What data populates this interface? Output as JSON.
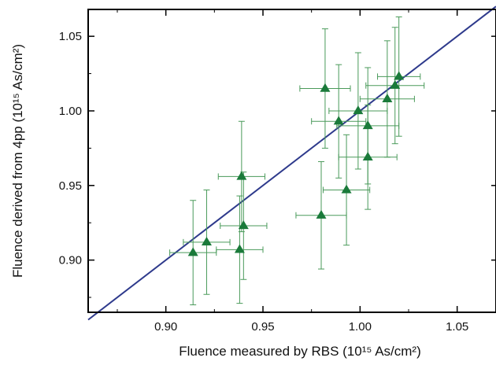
{
  "chart_data": {
    "type": "scatter",
    "title": "",
    "xlabel": "Fluence measured by RBS (10¹⁵ As/cm²)",
    "ylabel": "Fluence derived from 4pp (10¹⁵ As/cm²)",
    "xlim": [
      0.86,
      1.07
    ],
    "ylim": [
      0.865,
      1.068
    ],
    "x_ticks": [
      0.9,
      0.95,
      1.0,
      1.05
    ],
    "x_tick_labels": [
      "0.90",
      "0.95",
      "1.00",
      "1.05"
    ],
    "y_ticks": [
      0.9,
      0.95,
      1.0,
      1.05
    ],
    "y_tick_labels": [
      "0.90",
      "0.95",
      "1.00",
      "1.05"
    ],
    "grid": false,
    "legend": "none",
    "marker": "triangle",
    "colors": {
      "points": "#1a7a3a",
      "error_bars": "#4a9a5a",
      "fit_line": "#2e3a8c",
      "axes": "#000000"
    },
    "series": [
      {
        "x": [
          0.914,
          0.921,
          0.938,
          0.939,
          0.94,
          0.98,
          0.982,
          0.989,
          0.993,
          0.999,
          1.004,
          1.004,
          1.014,
          1.018,
          1.02
        ],
        "y": [
          0.905,
          0.912,
          0.907,
          0.956,
          0.923,
          0.93,
          1.015,
          0.993,
          0.947,
          1.0,
          0.99,
          0.969,
          1.008,
          1.017,
          1.023
        ],
        "xerr": [
          0.012,
          0.012,
          0.012,
          0.012,
          0.012,
          0.013,
          0.013,
          0.014,
          0.012,
          0.015,
          0.016,
          0.015,
          0.014,
          0.015,
          0.011
        ],
        "yerr": [
          0.035,
          0.035,
          0.036,
          0.037,
          0.036,
          0.036,
          0.04,
          0.038,
          0.037,
          0.039,
          0.039,
          0.035,
          0.039,
          0.039,
          0.04
        ]
      }
    ],
    "fit_line": {
      "x": [
        0.86,
        1.07
      ],
      "y": [
        0.86,
        1.07
      ]
    }
  }
}
